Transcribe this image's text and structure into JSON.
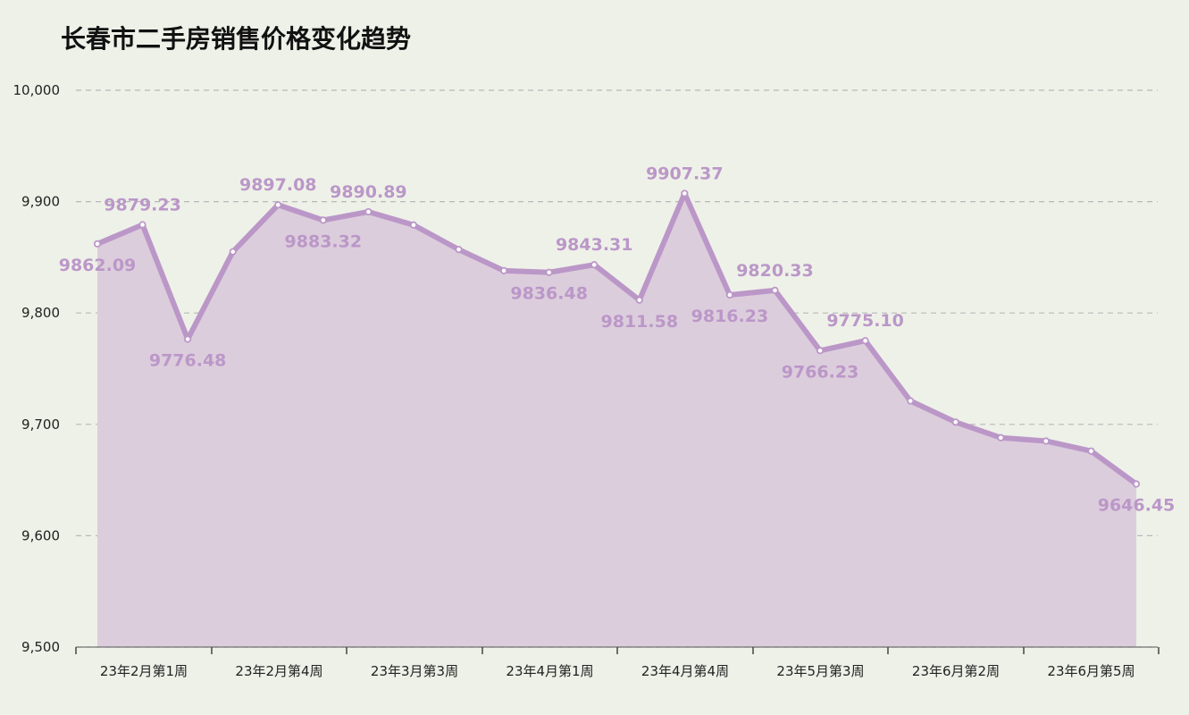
{
  "chart_data": {
    "type": "area",
    "title": "长春市二手房销售价格变化趋势",
    "xlabel": "",
    "ylabel": "",
    "ylim": [
      9500,
      10000
    ],
    "yticks": [
      9500,
      9600,
      9700,
      9800,
      9900,
      10000
    ],
    "ytick_labels": [
      "9,500",
      "9,600",
      "9,700",
      "9,800",
      "9,900",
      "10,000"
    ],
    "x_tick_labels": [
      "23年2月第1周",
      "23年2月第4周",
      "23年3月第3周",
      "23年4月第1周",
      "23年4月第4周",
      "23年5月第3周",
      "23年6月第2周",
      "23年6月第5周"
    ],
    "series": [
      {
        "values": [
          9862.09,
          9879.23,
          9776.48,
          9855,
          9897.08,
          9883.32,
          9890.89,
          9879,
          9857,
          9838,
          9836.48,
          9843.31,
          9811.58,
          9907.37,
          9816.23,
          9820.33,
          9766.23,
          9775.1,
          9721,
          9702,
          9688,
          9685,
          9676,
          9646.45
        ],
        "labels": [
          "9862.09",
          "9879.23",
          "9776.48",
          "",
          "9897.08",
          "9883.32",
          "9890.89",
          "",
          "",
          "",
          "9836.48",
          "9843.31",
          "9811.58",
          "9907.37",
          "9816.23",
          "9820.33",
          "9766.23",
          "9775.10",
          "",
          "",
          "",
          "",
          "",
          "9646.45"
        ],
        "label_positions": [
          "below",
          "above",
          "below",
          "",
          "above",
          "below",
          "above",
          "",
          "",
          "",
          "below",
          "above",
          "below",
          "above",
          "below",
          "above",
          "below",
          "above",
          "",
          "",
          "",
          "",
          "",
          "below"
        ]
      }
    ],
    "grid": true,
    "legend": "none",
    "colors": {
      "line": "#bb97c8",
      "fill": "#dccddc",
      "label": "#bb97c8",
      "grid": "#b8b8b8",
      "background": "#eef1e8"
    }
  }
}
